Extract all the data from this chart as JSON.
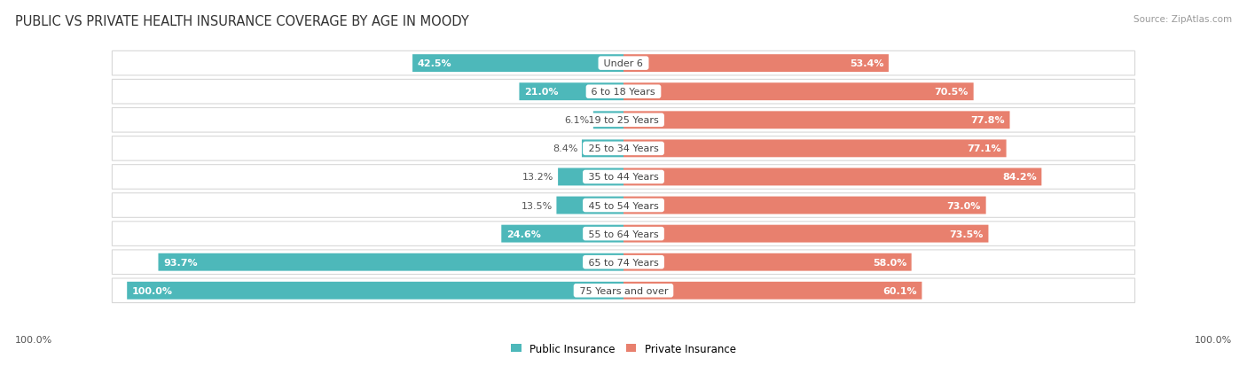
{
  "title": "PUBLIC VS PRIVATE HEALTH INSURANCE COVERAGE BY AGE IN MOODY",
  "source": "Source: ZipAtlas.com",
  "categories": [
    "Under 6",
    "6 to 18 Years",
    "19 to 25 Years",
    "25 to 34 Years",
    "35 to 44 Years",
    "45 to 54 Years",
    "55 to 64 Years",
    "65 to 74 Years",
    "75 Years and over"
  ],
  "public_values": [
    42.5,
    21.0,
    6.1,
    8.4,
    13.2,
    13.5,
    24.6,
    93.7,
    100.0
  ],
  "private_values": [
    53.4,
    70.5,
    77.8,
    77.1,
    84.2,
    73.0,
    73.5,
    58.0,
    60.1
  ],
  "public_color": "#4db8ba",
  "private_color": "#e8806e",
  "public_color_light": "#a8d8d8",
  "private_color_light": "#f0b8b0",
  "background_color": "#ffffff",
  "row_bg_color": "#f0f0f0",
  "title_fontsize": 10.5,
  "source_fontsize": 7.5,
  "label_fontsize": 8,
  "cat_fontsize": 8,
  "bar_height": 0.62,
  "max_value": 100.0,
  "pub_inside_threshold": 20,
  "priv_inside_threshold": 15,
  "bottom_label": "100.0%"
}
